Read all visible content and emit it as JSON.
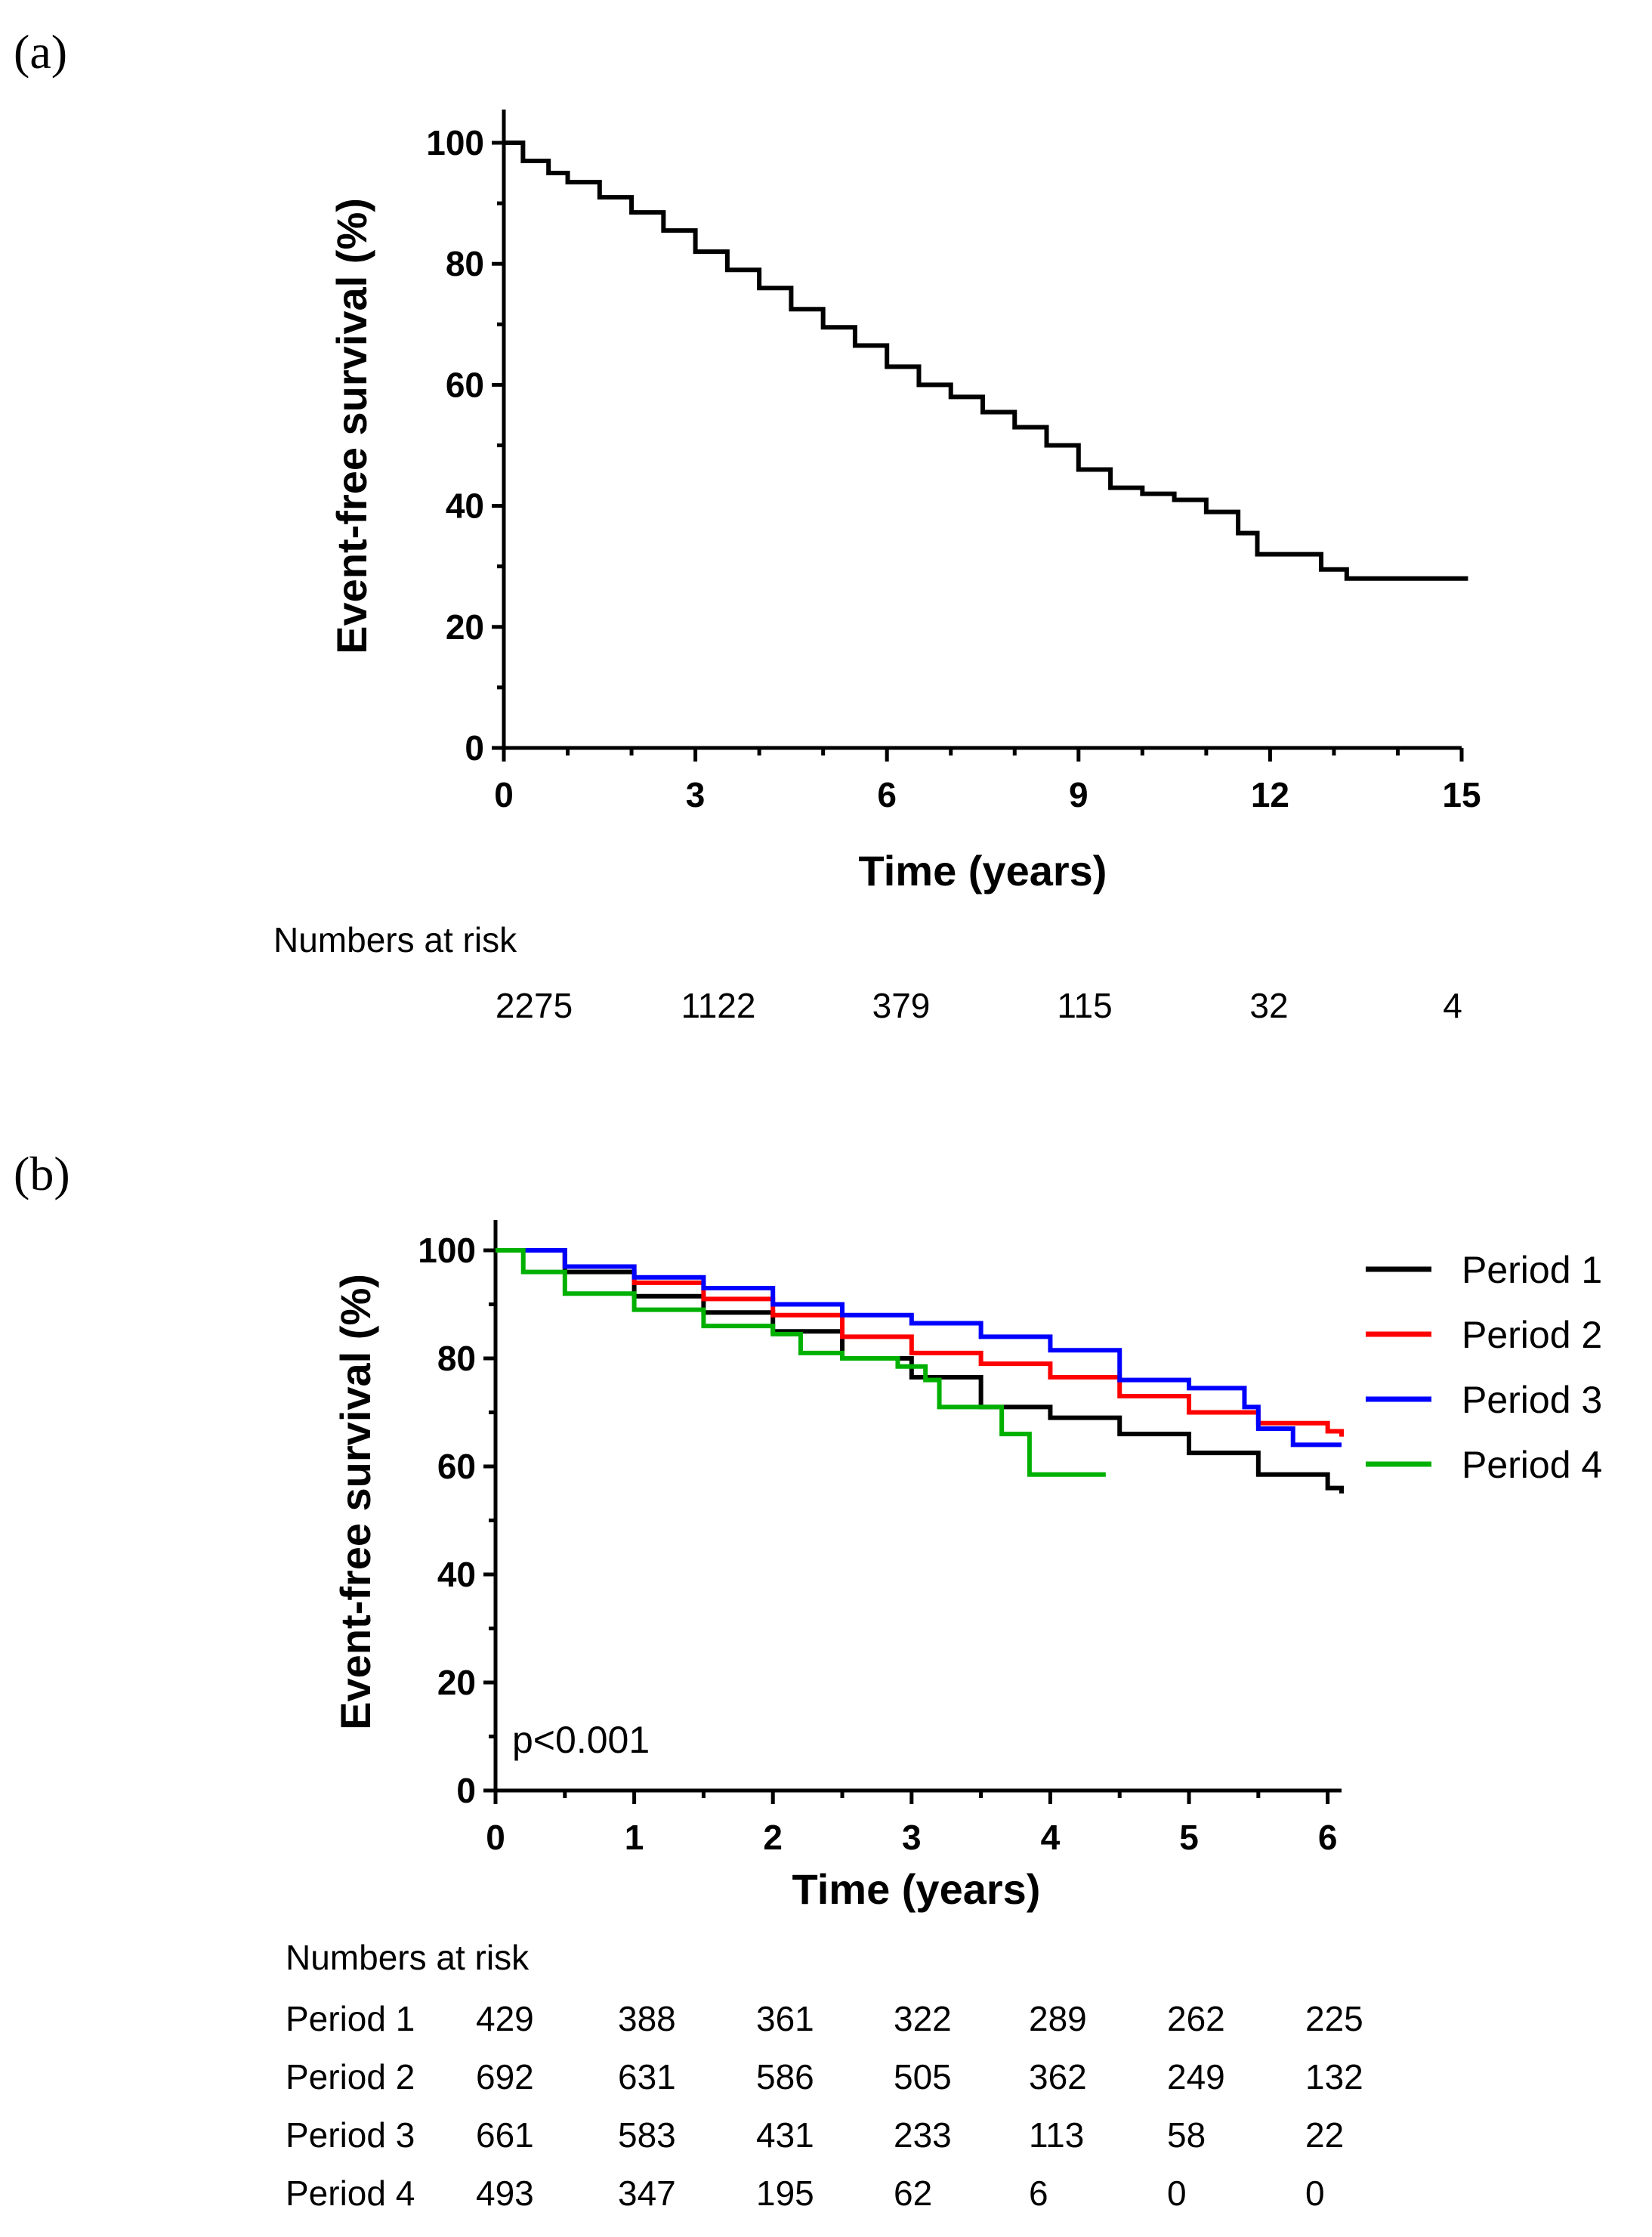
{
  "chart_data": [
    {
      "type": "line",
      "panel_label": "(a)",
      "xlabel": "Time (years)",
      "ylabel": "Event-free survival (%)",
      "xlim": [
        0,
        15
      ],
      "ylim": [
        0,
        100
      ],
      "xticks": [
        "0",
        "3",
        "6",
        "9",
        "12",
        "15"
      ],
      "yticks": [
        "0",
        "20",
        "40",
        "60",
        "80",
        "100"
      ],
      "series": [
        {
          "color": "#000000",
          "x": [
            0,
            0.3,
            0.7,
            1,
            1.5,
            2,
            2.5,
            3,
            3.5,
            4,
            4.5,
            5,
            5.5,
            6,
            6.5,
            7,
            7.5,
            8,
            8.5,
            9,
            9.5,
            10,
            10.5,
            11,
            11.5,
            11.8,
            12.7,
            12.8,
            13.2,
            15.1
          ],
          "y": [
            100,
            97,
            95,
            93.5,
            91,
            88.5,
            85.5,
            82,
            79,
            76,
            72.5,
            69.5,
            66.5,
            63,
            60,
            58,
            55.5,
            53,
            50,
            46,
            43,
            42,
            41,
            39,
            35.5,
            32,
            32,
            29.5,
            28,
            28
          ]
        }
      ],
      "risk_table": {
        "title": "Numbers at risk",
        "rows": [
          {
            "label": "",
            "values": [
              "2275",
              "1122",
              "379",
              "115",
              "32",
              "4"
            ]
          }
        ]
      }
    },
    {
      "type": "line",
      "panel_label": "(b)",
      "xlabel": "Time (years)",
      "ylabel": "Event-free survival (%)",
      "xlim": [
        0,
        6.1
      ],
      "ylim": [
        0,
        100
      ],
      "xticks": [
        "0",
        "1",
        "2",
        "3",
        "4",
        "5",
        "6"
      ],
      "yticks": [
        "0",
        "20",
        "40",
        "60",
        "80",
        "100"
      ],
      "annotation": "p<0.001",
      "legend_position": "top-right",
      "series": [
        {
          "name": "Period 1",
          "color": "#000000",
          "x": [
            0,
            0.5,
            1,
            1.5,
            2,
            2.5,
            3,
            3.5,
            4,
            4.5,
            5,
            5.5,
            6,
            6.1
          ],
          "y": [
            100,
            96,
            91.5,
            88.5,
            85,
            80,
            76.5,
            71,
            69,
            66,
            62.5,
            58.5,
            56,
            55
          ]
        },
        {
          "name": "Period 2",
          "color": "#ff0000",
          "x": [
            0,
            0.5,
            1,
            1.5,
            2,
            2.5,
            3,
            3.5,
            4,
            4.5,
            5,
            5.5,
            6,
            6.1
          ],
          "y": [
            100,
            97,
            94,
            91,
            88,
            84,
            81,
            79,
            76.5,
            73,
            70,
            68,
            66.5,
            65.5
          ]
        },
        {
          "name": "Period 3",
          "color": "#0000ff",
          "x": [
            0,
            0.5,
            1,
            1.5,
            2,
            2.5,
            3,
            3.5,
            4,
            4.5,
            5,
            5.4,
            5.5,
            5.7,
            5.75,
            6.1
          ],
          "y": [
            100,
            97,
            95,
            93,
            90,
            88,
            86.5,
            84,
            81.5,
            76,
            74.5,
            71,
            67,
            67,
            64,
            64
          ]
        },
        {
          "name": "Period 4",
          "color": "#00b000",
          "x": [
            0,
            0.2,
            0.5,
            1,
            1.5,
            2,
            2.2,
            2.5,
            2.9,
            3.1,
            3.2,
            3.6,
            3.65,
            3.8,
            3.85,
            4.4
          ],
          "y": [
            100,
            96,
            92,
            89,
            86,
            84.5,
            81,
            80,
            78.5,
            76,
            71,
            71,
            66,
            66,
            58.5,
            58.5
          ]
        }
      ],
      "risk_table": {
        "title": "Numbers at risk",
        "rows": [
          {
            "label": "Period 1",
            "values": [
              "429",
              "388",
              "361",
              "322",
              "289",
              "262",
              "225"
            ]
          },
          {
            "label": "Period 2",
            "values": [
              "692",
              "631",
              "586",
              "505",
              "362",
              "249",
              "132"
            ]
          },
          {
            "label": "Period 3",
            "values": [
              "661",
              "583",
              "431",
              "233",
              "113",
              "58",
              "22"
            ]
          },
          {
            "label": "Period 4",
            "values": [
              "493",
              "347",
              "195",
              "62",
              "6",
              "0",
              "0"
            ]
          }
        ]
      }
    }
  ]
}
